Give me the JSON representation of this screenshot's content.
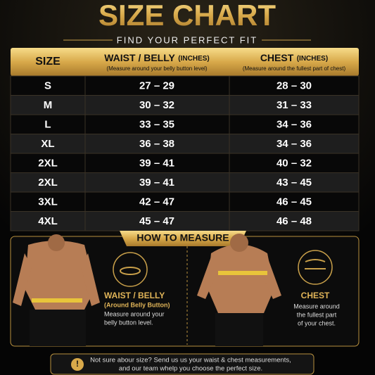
{
  "title": "SIZE CHART",
  "subtitle": "FIND YOUR PERFECT FIT",
  "table": {
    "header": {
      "size": "SIZE",
      "waist": {
        "title": "WAIST / BELLY",
        "unit": "(INCHES)",
        "note": "(Measure around your belly button level)"
      },
      "chest": {
        "title": "CHEST",
        "unit": "(INCHES)",
        "note": "(Measure around the fullest part of chest)"
      }
    },
    "rows": [
      [
        "S",
        "27 – 29",
        "28 – 30"
      ],
      [
        "M",
        "30 – 32",
        "31 – 33"
      ],
      [
        "L",
        "33 – 35",
        "34 – 36"
      ],
      [
        "XL",
        "36 – 38",
        "34 – 36"
      ],
      [
        "2XL",
        "39 – 41",
        "40 – 32"
      ],
      [
        "2XL",
        "39 – 41",
        "43 – 45"
      ],
      [
        "3XL",
        "42 – 47",
        "46 – 45"
      ],
      [
        "4XL",
        "45 – 47",
        "46 – 48"
      ]
    ]
  },
  "how_to_measure": {
    "title": "HOW TO MEASURE",
    "waist": {
      "title": "WAIST / BELLY",
      "subtitle": "(Around Belly Button)",
      "lines": [
        "Measure around your",
        "belly button level."
      ]
    },
    "chest": {
      "title": "CHEST",
      "lines": [
        "Measure around",
        "the fullest part",
        "of your chest."
      ]
    }
  },
  "footer": {
    "lines": [
      "Not sure abour size? Send us us your waist & chest measurements,",
      "and our team whelp you choose the perfect size."
    ]
  }
}
